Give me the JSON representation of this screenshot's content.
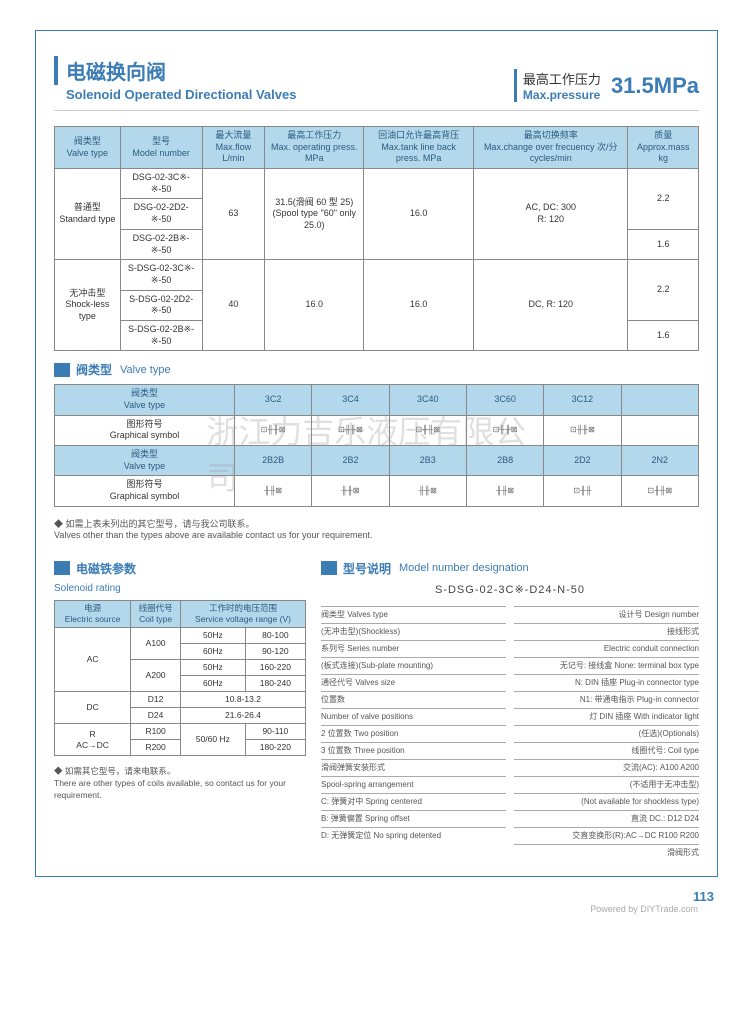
{
  "header": {
    "title_cn": "电磁换向阀",
    "title_en": "Solenoid Operated Directional Valves",
    "maxp_cn": "最高工作压力",
    "maxp_en": "Max.pressure",
    "maxp_val": "31.5MPa"
  },
  "table1": {
    "headers": [
      {
        "cn": "阀类型",
        "en": "Valve type"
      },
      {
        "cn": "型号",
        "en": "Model number"
      },
      {
        "cn": "最大流量",
        "en": "Max.flow L/min"
      },
      {
        "cn": "最高工作压力",
        "en": "Max. operating press. MPa"
      },
      {
        "cn": "回油口允许最高背压",
        "en": "Max.tank line back press. MPa"
      },
      {
        "cn": "最高切换频率",
        "en": "Max.change over frecuency 次/分 cycles/min"
      },
      {
        "cn": "质量",
        "en": "Approx.mass kg"
      }
    ],
    "rows": [
      {
        "type_cn": "普通型",
        "type_en": "Standard type",
        "models": [
          "DSG-02-3C※-※-50",
          "DSG-02-2D2-※-50",
          "DSG-02-2B※-※-50"
        ],
        "flow": "63",
        "press": "31.5(滑阀 60 型 25)\n(Spool type \"60\" only 25.0)",
        "back": "16.0",
        "freq": "AC, DC: 300\nR: 120",
        "mass": [
          "2.2",
          "",
          "1.6"
        ]
      },
      {
        "type_cn": "无冲击型",
        "type_en": "Shock-less type",
        "models": [
          "S-DSG-02-3C※-※-50",
          "S-DSG-02-2D2-※-50",
          "S-DSG-02-2B※-※-50"
        ],
        "flow": "40",
        "press": "16.0",
        "back": "16.0",
        "freq": "DC, R: 120",
        "mass": [
          "2.2",
          "",
          "1.6"
        ]
      }
    ]
  },
  "sect_valvetype": {
    "cn": "阀类型",
    "en": "Valve type"
  },
  "table2": {
    "label_cn": "阀类型",
    "label_en": "Valve type",
    "label2_cn": "图形符号",
    "label2_en": "Graphical symbol",
    "row1": [
      "3C2",
      "3C4",
      "3C40",
      "3C60",
      "3C12",
      ""
    ],
    "row1sym": [
      "⊡╫╫⊠",
      "⊡╫╫⊠",
      "⊡╫╫⊠",
      "⊡╫╫⊠",
      "⊡╫╫⊠",
      ""
    ],
    "row2": [
      "2B2B",
      "2B2",
      "2B3",
      "2B8",
      "2D2",
      "2N2"
    ],
    "row2sym": [
      "╫╫⊠",
      "╫╫⊠",
      "╫╫⊠",
      "╫╫⊠",
      "⊡╫╫",
      "⊡╫╫⊠"
    ]
  },
  "note1_cn": "◆ 如需上表未列出的其它型号，请与我公司联系。",
  "note1_en": "Valves other than the types above are available contact us for your requirement.",
  "sect_rating": {
    "cn": "电磁铁参数",
    "en": "Solenoid rating"
  },
  "sect_model": {
    "cn": "型号说明",
    "en": "Model number designation"
  },
  "rating": {
    "h": [
      {
        "cn": "电源",
        "en": "Electric source"
      },
      {
        "cn": "线圈代号",
        "en": "Coil type"
      },
      {
        "cn": "工作时的电压范围",
        "en": "Service voltage range (V)"
      }
    ],
    "rows": [
      {
        "src": "AC",
        "coil": "A100",
        "freq": "50Hz",
        "v": "80-100"
      },
      {
        "src": "",
        "coil": "",
        "freq": "60Hz",
        "v": "90-120"
      },
      {
        "src": "",
        "coil": "A200",
        "freq": "50Hz",
        "v": "160-220"
      },
      {
        "src": "",
        "coil": "",
        "freq": "60Hz",
        "v": "180-240"
      },
      {
        "src": "DC",
        "coil": "D12",
        "freq": "",
        "v": "10.8-13.2"
      },
      {
        "src": "",
        "coil": "D24",
        "freq": "",
        "v": "21.6-26.4"
      },
      {
        "src": "R\nAC→DC",
        "coil": "R100",
        "freq": "50/60 Hz",
        "v": "90-110"
      },
      {
        "src": "",
        "coil": "R200",
        "freq": "",
        "v": "180-220"
      }
    ]
  },
  "note2_cn": "◆ 如需其它型号，请来电联系。",
  "note2_en": "There are other types of coils available, so contact us for your requirement.",
  "model": {
    "code": "S-DSG-02-3C※-D24-N-50",
    "left": [
      "阀类型 Valves type",
      "(无冲击型)(Shockless)",
      "系列号 Series number",
      "(板式连接)(Sub-plate mounting)",
      "通径代号 Valves size",
      "位置数",
      "Number of valve positions",
      "2 位置数 Two position",
      "3 位置数 Three position",
      "滑阀弹簧安装形式",
      "Spool-spring arrangement",
      "C: 弹簧对中 Spring centered",
      "B: 弹簧偏置 Spring offset",
      "D: 无弹簧定位 No spring detented"
    ],
    "right": [
      "设计号 Design number",
      "接线形式",
      "Electric conduit connection",
      "无记号: 接线盒 None: terminal box type",
      "N: DIN 插座 Plug-in connector type",
      "N1: 带通电指示 Plug-in connector",
      "灯 DIN 插座 With indicator light",
      "(任选)(Optionals)",
      "线圈代号: Coil type",
      "交流(AC): A100 A200",
      "(不适用于无冲击型)",
      "(Not available for shockless type)",
      "直流 DC.: D12 D24",
      "交直变换形(R):AC→DC R100 R200",
      "滑阀形式"
    ]
  },
  "watermark": "浙江力吉乐液压有限公司",
  "footer": {
    "powered": "Powered by DIYTrade.com",
    "page": "113"
  }
}
